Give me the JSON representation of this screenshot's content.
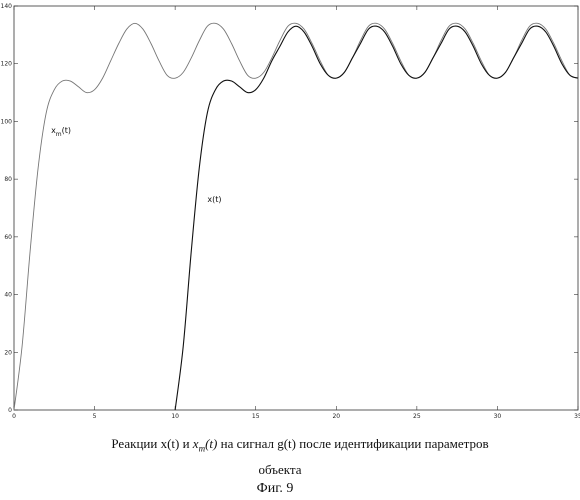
{
  "chart_data": {
    "type": "line",
    "xlim": [
      0,
      35
    ],
    "ylim": [
      0,
      140
    ],
    "x_ticks": [
      0,
      5,
      10,
      15,
      20,
      25,
      30,
      35
    ],
    "x_tick_labels": [
      "0",
      "5",
      "10",
      "15",
      "20",
      "25",
      "30",
      "35"
    ],
    "y_ticks": [
      0,
      20,
      40,
      60,
      80,
      100,
      120,
      140
    ],
    "y_tick_labels": [
      "0",
      "20",
      "40",
      "60",
      "80",
      "100",
      "120",
      "140"
    ],
    "grid": false,
    "series": [
      {
        "name": "x_m(t)",
        "label_main": "x",
        "label_sub": "m",
        "label_suffix": "(t)",
        "color": "#777777",
        "x": [
          0,
          0.5,
          1,
          1.5,
          2,
          2.5,
          3,
          3.5,
          4,
          4.5,
          5,
          5.5,
          6,
          6.5,
          7,
          7.5,
          8,
          8.5,
          9,
          9.5,
          10,
          10.5,
          11,
          11.5,
          12,
          12.5,
          13,
          13.5,
          14,
          14.5,
          15,
          15.5,
          16,
          16.5,
          17,
          17.5,
          18,
          18.5,
          19,
          19.5,
          20,
          20.5,
          21,
          21.5,
          22,
          22.5,
          23,
          23.5,
          24,
          24.5,
          25,
          25.5,
          26,
          26.5,
          27,
          27.5,
          28,
          28.5,
          29,
          29.5,
          30,
          30.5,
          31,
          31.5,
          32,
          32.5,
          33,
          33.5,
          34,
          34.5,
          35
        ],
        "y": [
          0,
          22,
          55,
          84,
          103,
          111,
          114,
          114,
          112,
          110,
          111,
          115,
          121,
          127,
          132,
          134,
          132,
          127,
          121,
          116,
          115,
          117,
          122,
          128,
          133,
          134,
          132,
          127,
          121,
          116,
          115,
          117,
          122,
          128,
          133,
          134,
          132,
          127,
          121,
          116,
          115,
          117,
          122,
          128,
          133,
          134,
          132,
          127,
          121,
          116,
          115,
          117,
          122,
          128,
          133,
          134,
          132,
          127,
          121,
          116,
          115,
          117,
          122,
          128,
          133,
          134,
          132,
          127,
          121,
          116,
          115
        ]
      },
      {
        "name": "x(t)",
        "label_main": "x(t)",
        "color": "#111111",
        "x": [
          10,
          10.5,
          11,
          11.5,
          12,
          12.5,
          13,
          13.5,
          14,
          14.5,
          15,
          15.5,
          16,
          16.5,
          17,
          17.5,
          18,
          18.5,
          19,
          19.5,
          20,
          20.5,
          21,
          21.5,
          22,
          22.5,
          23,
          23.5,
          24,
          24.5,
          25,
          25.5,
          26,
          26.5,
          27,
          27.5,
          28,
          28.5,
          29,
          29.5,
          30,
          30.5,
          31,
          31.5,
          32,
          32.5,
          33,
          33.5,
          34,
          34.5,
          35
        ],
        "y": [
          0,
          22,
          55,
          84,
          103,
          111,
          114,
          114,
          112,
          110,
          111,
          115,
          121,
          126,
          131,
          133,
          131,
          126,
          120,
          116,
          115,
          117,
          122,
          127,
          132,
          133,
          131,
          126,
          120,
          116,
          115,
          117,
          122,
          127,
          132,
          133,
          131,
          126,
          120,
          116,
          115,
          117,
          122,
          127,
          132,
          133,
          131,
          126,
          120,
          116,
          115
        ]
      }
    ]
  },
  "caption": {
    "line1_before": "Реакции x(t) и ",
    "math_main": "x",
    "math_sub": "m",
    "math_suffix": "(t)",
    "line1_after": "  на сигнал g(t) после идентификации параметров",
    "line2": "объекта",
    "line3": "Фиг. 9"
  }
}
